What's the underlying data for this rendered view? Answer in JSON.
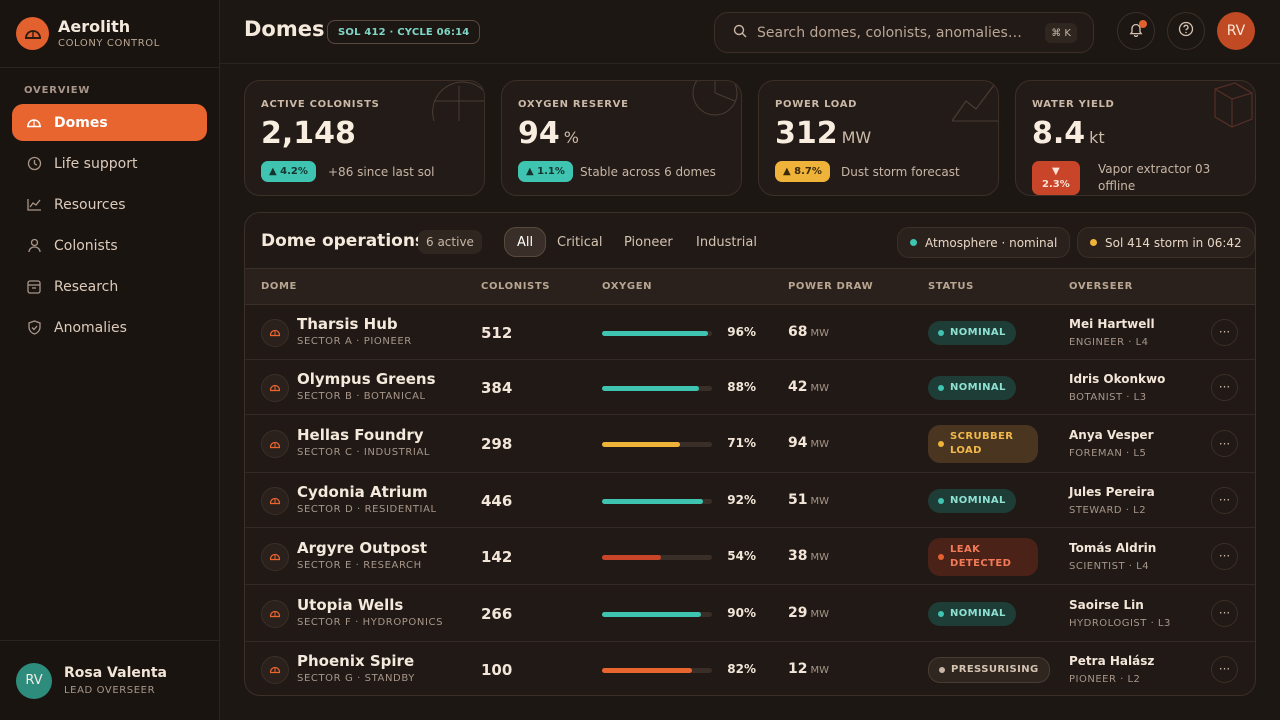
{
  "brand": {
    "name": "Aerolith",
    "subtitle": "COLONY CONTROL",
    "icon": "dome-icon"
  },
  "sidebar": {
    "section": "OVERVIEW",
    "items": [
      {
        "label": "Domes",
        "icon": "dome-icon",
        "active": true
      },
      {
        "label": "Life support",
        "icon": "clock-icon"
      },
      {
        "label": "Resources",
        "icon": "chart-line-icon"
      },
      {
        "label": "Colonists",
        "icon": "person-icon"
      },
      {
        "label": "Research",
        "icon": "archive-icon"
      },
      {
        "label": "Anomalies",
        "icon": "shield-check-icon"
      }
    ],
    "user": {
      "initials": "RV",
      "name": "Rosa Valenta",
      "role": "LEAD OVERSEER"
    }
  },
  "header": {
    "title": "Domes",
    "sol": "SOL 412 · CYCLE 06:14",
    "search_placeholder": "Search domes, colonists, anomalies…",
    "search_shortcut": "⌘ K",
    "avatar": "RV"
  },
  "kpis": [
    {
      "label": "ACTIVE COLONISTS",
      "value": "2,148",
      "unit": "",
      "change": "▲ 4.2%",
      "note": "+86 since last sol"
    },
    {
      "label": "OXYGEN RESERVE",
      "value": "94",
      "unit": "%",
      "change": "▲ 1.1%",
      "note": "Stable across 6 domes"
    },
    {
      "label": "POWER LOAD",
      "value": "312",
      "unit": "MW",
      "change": "▲ 8.7%",
      "note": "Dust storm forecast"
    },
    {
      "label": "WATER YIELD",
      "value": "8.4",
      "unit": "kt",
      "change_arrow": "▼",
      "change": "2.3%",
      "note": "Vapor extractor 03 offline"
    }
  ],
  "panel": {
    "title": "Dome operations",
    "count": "6 active",
    "filters": [
      "All",
      "Critical",
      "Pioneer",
      "Industrial"
    ],
    "atmosphere": "Atmosphere · nominal",
    "storm": "Sol 414 storm in 06:42",
    "columns": [
      "DOME",
      "COLONISTS",
      "OXYGEN",
      "POWER DRAW",
      "STATUS",
      "OVERSEER"
    ],
    "rows": [
      {
        "name": "Tharsis Hub",
        "sector": "SECTOR A · PIONEER",
        "colonists": "512",
        "oxygen": 96,
        "oxygen_label": "96%",
        "power": "68",
        "power_unit": "MW",
        "status": "NOMINAL",
        "overseer": "Mei Hartwell",
        "role": "ENGINEER · L4"
      },
      {
        "name": "Olympus Greens",
        "sector": "SECTOR B · BOTANICAL",
        "colonists": "384",
        "oxygen": 88,
        "oxygen_label": "88%",
        "power": "42",
        "power_unit": "MW",
        "status": "NOMINAL",
        "overseer": "Idris Okonkwo",
        "role": "BOTANIST · L3"
      },
      {
        "name": "Hellas Foundry",
        "sector": "SECTOR C · INDUSTRIAL",
        "colonists": "298",
        "oxygen": 71,
        "oxygen_label": "71%",
        "power": "94",
        "power_unit": "MW",
        "status": "SCRUBBER LOAD",
        "overseer": "Anya Vesper",
        "role": "FOREMAN · L5"
      },
      {
        "name": "Cydonia Atrium",
        "sector": "SECTOR D · RESIDENTIAL",
        "colonists": "446",
        "oxygen": 92,
        "oxygen_label": "92%",
        "power": "51",
        "power_unit": "MW",
        "status": "NOMINAL",
        "overseer": "Jules Pereira",
        "role": "STEWARD · L2"
      },
      {
        "name": "Argyre Outpost",
        "sector": "SECTOR E · RESEARCH",
        "colonists": "142",
        "oxygen": 54,
        "oxygen_label": "54%",
        "power": "38",
        "power_unit": "MW",
        "status": "LEAK DETECTED",
        "overseer": "Tomás Aldrin",
        "role": "SCIENTIST · L4"
      },
      {
        "name": "Utopia Wells",
        "sector": "SECTOR F · HYDROPONICS",
        "colonists": "266",
        "oxygen": 90,
        "oxygen_label": "90%",
        "power": "29",
        "power_unit": "MW",
        "status": "NOMINAL",
        "overseer": "Saoirse Lin",
        "role": "HYDROLOGIST · L3"
      },
      {
        "name": "Phoenix Spire",
        "sector": "SECTOR G · STANDBY",
        "colonists": "100",
        "oxygen": 82,
        "oxygen_label": "82%",
        "power": "12",
        "power_unit": "MW",
        "status": "PRESSURISING",
        "overseer": "Petra Halász",
        "role": "PIONEER · L2"
      }
    ]
  },
  "colors": {
    "accent": "#e8652f",
    "teal": "#3fc4b1",
    "amber": "#efb33a",
    "red": "#c8452a"
  }
}
